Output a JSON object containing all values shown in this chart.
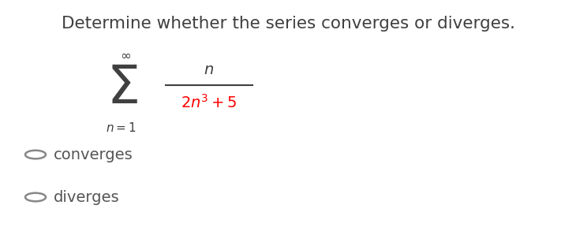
{
  "title": "Determine whether the series converges or diverges.",
  "title_color": "#404040",
  "title_fontsize": 15.5,
  "background_color": "#ffffff",
  "sigma_fontsize": 48,
  "infinity_fontsize": 12,
  "n_eq_1_fontsize": 11,
  "numerator_fontsize": 14,
  "denominator_fontsize": 14,
  "denominator_color": "#ff0000",
  "option_fontsize": 14,
  "option_color": "#555555",
  "sigma_color": "#404040",
  "fraction_line_color": "#404040",
  "circle_color": "#888888"
}
